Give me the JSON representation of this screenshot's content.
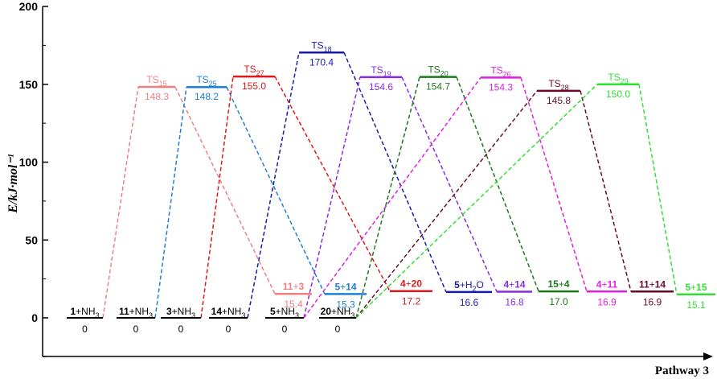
{
  "chart_data": {
    "type": "energy_profile",
    "ylabel": "E/kJ·mol⁻¹",
    "xlabel": "Pathway 3",
    "ylim": [
      -25,
      200
    ],
    "yticks": [
      0,
      50,
      100,
      150,
      200
    ],
    "reactions": [
      {
        "color": "#f08080",
        "reactant": {
          "label": [
            {
              "t": "1",
              "b": true
            },
            {
              "t": "+NH"
            },
            {
              "t": "3",
              "sub": true
            }
          ],
          "value": 0,
          "value_text": "0"
        },
        "ts": {
          "label": [
            {
              "t": "TS"
            },
            {
              "t": "15",
              "sub": true
            }
          ],
          "value": 148.3,
          "value_text": "148.3"
        },
        "product": {
          "label": [
            {
              "t": "11",
              "b": true
            },
            {
              "t": "+"
            },
            {
              "t": "3",
              "b": true
            }
          ],
          "value": 15.4,
          "value_text": "15.4"
        }
      },
      {
        "color": "#1e7fd8",
        "reactant": {
          "label": [
            {
              "t": "11",
              "b": true
            },
            {
              "t": "+NH"
            },
            {
              "t": "3",
              "sub": true
            }
          ],
          "value": 0,
          "value_text": "0"
        },
        "ts": {
          "label": [
            {
              "t": "TS"
            },
            {
              "t": "25",
              "sub": true
            }
          ],
          "value": 148.2,
          "value_text": "148.2"
        },
        "product": {
          "label": [
            {
              "t": "5",
              "b": true
            },
            {
              "t": "+"
            },
            {
              "t": "14",
              "b": true
            }
          ],
          "value": 15.3,
          "value_text": "15.3"
        }
      },
      {
        "color": "#e01818",
        "reactant": {
          "label": [
            {
              "t": "3",
              "b": true
            },
            {
              "t": "+NH"
            },
            {
              "t": "3",
              "sub": true
            }
          ],
          "value": 0,
          "value_text": "0"
        },
        "ts": {
          "label": [
            {
              "t": "TS"
            },
            {
              "t": "27",
              "sub": true
            }
          ],
          "value": 155.0,
          "value_text": "155.0"
        },
        "product": {
          "label": [
            {
              "t": "4",
              "b": true
            },
            {
              "t": "+"
            },
            {
              "t": "20",
              "b": true
            }
          ],
          "value": 17.2,
          "value_text": "17.2"
        }
      },
      {
        "color": "#1a1aa8",
        "reactant": {
          "label": [
            {
              "t": "14",
              "b": true
            },
            {
              "t": "+NH"
            },
            {
              "t": "3",
              "sub": true
            }
          ],
          "value": 0,
          "value_text": "0"
        },
        "ts": {
          "label": [
            {
              "t": "TS"
            },
            {
              "t": "18",
              "sub": true
            }
          ],
          "value": 170.4,
          "value_text": "170.4"
        },
        "product": {
          "label": [
            {
              "t": "5",
              "b": true
            },
            {
              "t": "+H"
            },
            {
              "t": "2",
              "sub": true
            },
            {
              "t": "O"
            }
          ],
          "value": 16.6,
          "value_text": "16.6"
        }
      },
      {
        "color": "#8a2be2",
        "reactant": {
          "label": [
            {
              "t": "5",
              "b": true
            },
            {
              "t": "+NH"
            },
            {
              "t": "3",
              "sub": true
            }
          ],
          "value": 0,
          "value_text": "0"
        },
        "ts": {
          "label": [
            {
              "t": "TS"
            },
            {
              "t": "19",
              "sub": true
            }
          ],
          "value": 154.6,
          "value_text": "154.6"
        },
        "product": {
          "label": [
            {
              "t": "4",
              "b": true
            },
            {
              "t": "+"
            },
            {
              "t": "14",
              "b": true
            }
          ],
          "value": 16.8,
          "value_text": "16.8"
        }
      },
      {
        "color": "#1a7a1a",
        "reactant": {
          "label": [
            {
              "t": "20",
              "b": true
            },
            {
              "t": "+NH"
            },
            {
              "t": "3",
              "sub": true
            }
          ],
          "value": 0,
          "value_text": "0"
        },
        "ts": {
          "label": [
            {
              "t": "TS"
            },
            {
              "t": "20",
              "sub": true
            }
          ],
          "value": 154.7,
          "value_text": "154.7"
        },
        "product": {
          "label": [
            {
              "t": "15",
              "b": true
            },
            {
              "t": "+"
            },
            {
              "t": "4",
              "b": true
            }
          ],
          "value": 17.0,
          "value_text": "17.0"
        }
      },
      {
        "color": "#e020e0",
        "reactant": {
          "label": [],
          "value": 0,
          "value_text": ""
        },
        "ts": {
          "label": [
            {
              "t": "TS"
            },
            {
              "t": "26",
              "sub": true
            }
          ],
          "value": 154.3,
          "value_text": "154.3"
        },
        "product": {
          "label": [
            {
              "t": "4",
              "b": true
            },
            {
              "t": "+"
            },
            {
              "t": "11",
              "b": true
            }
          ],
          "value": 16.9,
          "value_text": "16.9"
        }
      },
      {
        "color": "#6a0a2a",
        "reactant": {
          "label": [],
          "value": 0,
          "value_text": ""
        },
        "ts": {
          "label": [
            {
              "t": "TS"
            },
            {
              "t": "28",
              "sub": true
            }
          ],
          "value": 145.8,
          "value_text": "145.8"
        },
        "product": {
          "label": [
            {
              "t": "11",
              "b": true
            },
            {
              "t": "+"
            },
            {
              "t": "14",
              "b": true
            }
          ],
          "value": 16.9,
          "value_text": "16.9"
        }
      },
      {
        "color": "#30e030",
        "reactant": {
          "label": [],
          "value": 0,
          "value_text": ""
        },
        "ts": {
          "label": [
            {
              "t": "TS"
            },
            {
              "t": "29",
              "sub": true
            }
          ],
          "value": 150.0,
          "value_text": "150.0"
        },
        "product": {
          "label": [
            {
              "t": "5",
              "b": true
            },
            {
              "t": "+"
            },
            {
              "t": "15",
              "b": true
            }
          ],
          "value": 15.1,
          "value_text": "15.1"
        }
      }
    ],
    "pathway_sources": [
      0,
      1,
      2,
      3,
      4,
      5,
      4,
      5,
      5
    ]
  }
}
